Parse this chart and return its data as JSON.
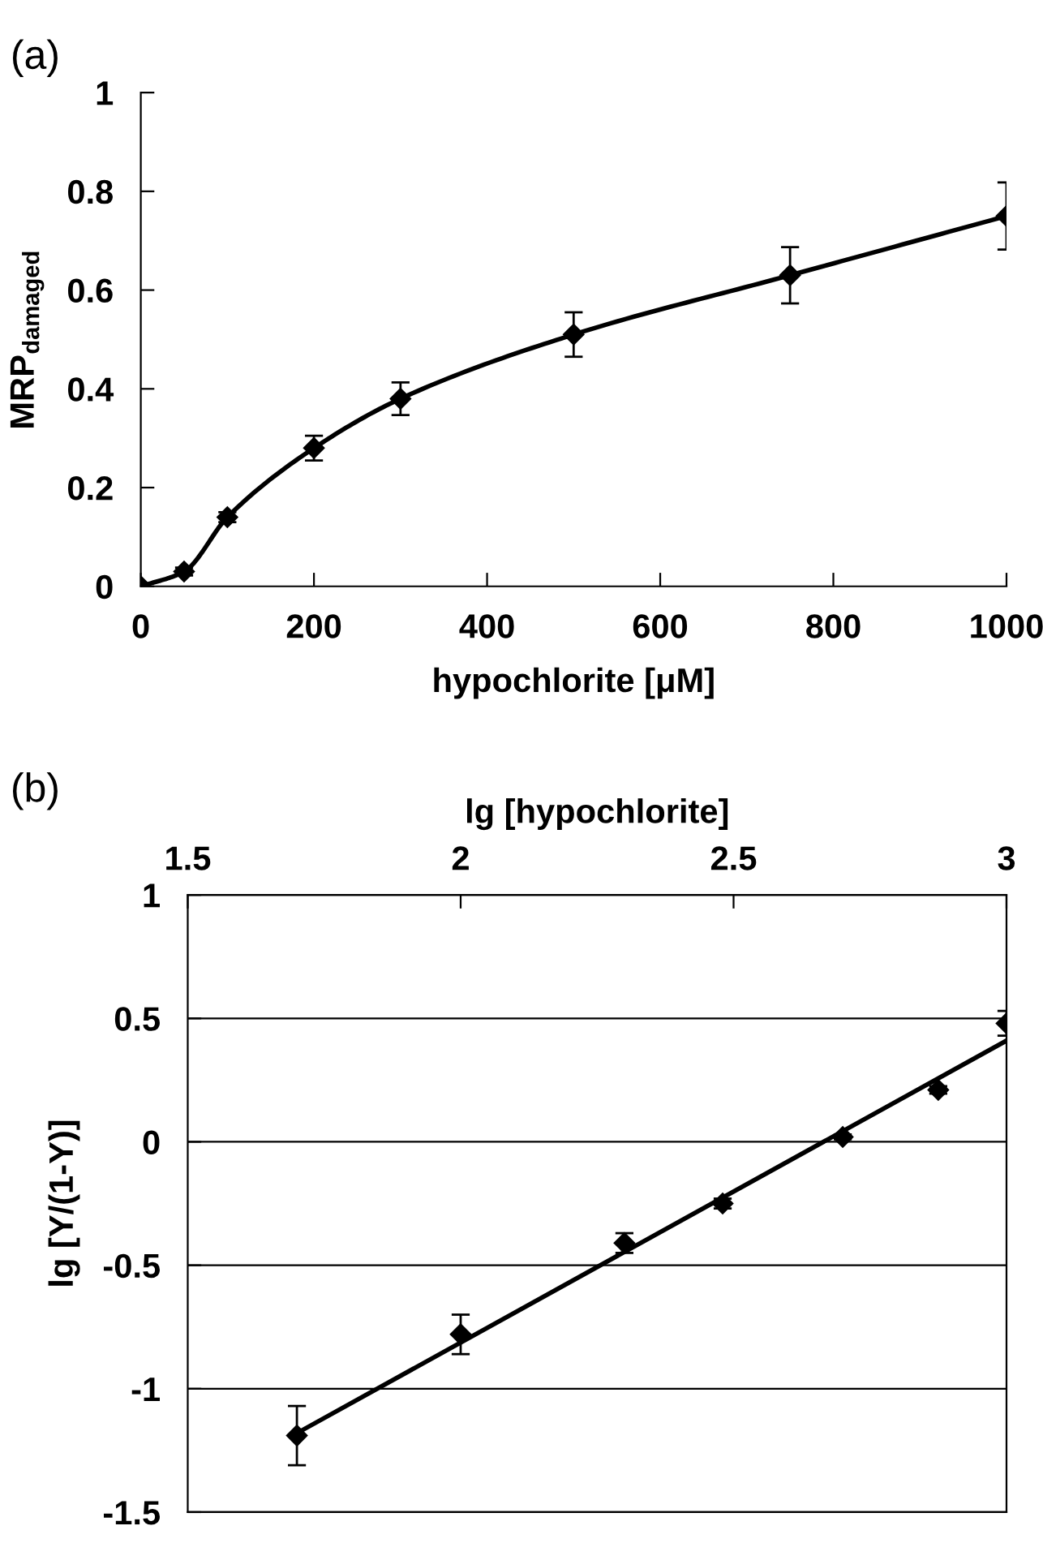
{
  "chart_data": [
    {
      "type": "line",
      "title": "(a)",
      "xlabel": "hypochlorite [μM]",
      "ylabel": "MRP$_{damaged}$",
      "marker": "diamond",
      "line_style": "solid",
      "grid": false,
      "x": [
        0,
        50,
        100,
        200,
        300,
        500,
        750,
        1000
      ],
      "series": [
        {
          "color": "#000000",
          "values": [
            0,
            0.03,
            0.14,
            0.28,
            0.38,
            0.51,
            0.63,
            0.75
          ],
          "errors": [
            null,
            0.008,
            0.01,
            0.025,
            0.033,
            0.045,
            0.057,
            0.068
          ]
        }
      ],
      "xlim": [
        0,
        1000
      ],
      "xticks": [
        0,
        200,
        400,
        600,
        800,
        1000
      ],
      "ylim": [
        0,
        1
      ],
      "yticks": [
        0,
        0.2,
        0.4,
        0.6,
        0.8,
        1
      ]
    },
    {
      "type": "scatter",
      "title": "(b)",
      "xlabel": "lg [hypochlorite]",
      "ylabel": "lg [Y/(1-Y)]",
      "grid": "y",
      "series": [
        {
          "color": "#000000",
          "marker": "diamond",
          "x": [
            1.7,
            2.0,
            2.3,
            2.48,
            2.7,
            2.875,
            3.0
          ],
          "values": [
            -1.19,
            -0.78,
            -0.41,
            -0.25,
            0.02,
            0.21,
            0.48
          ],
          "errors": [
            0.12,
            0.08,
            0.04,
            0.02,
            0.01,
            0.015,
            0.05
          ]
        },
        {
          "type": "line",
          "color": "#000000",
          "marker": "none",
          "line_style": "solid",
          "x": [
            1.7,
            3.0
          ],
          "values": [
            -1.18,
            0.41
          ]
        }
      ],
      "xlim": [
        1.5,
        3
      ],
      "xticks": [
        1.5,
        2,
        2.5,
        3
      ],
      "ylim": [
        -1.5,
        1
      ],
      "yticks": [
        -1.5,
        -1,
        -0.5,
        0,
        0.5,
        1
      ]
    }
  ]
}
